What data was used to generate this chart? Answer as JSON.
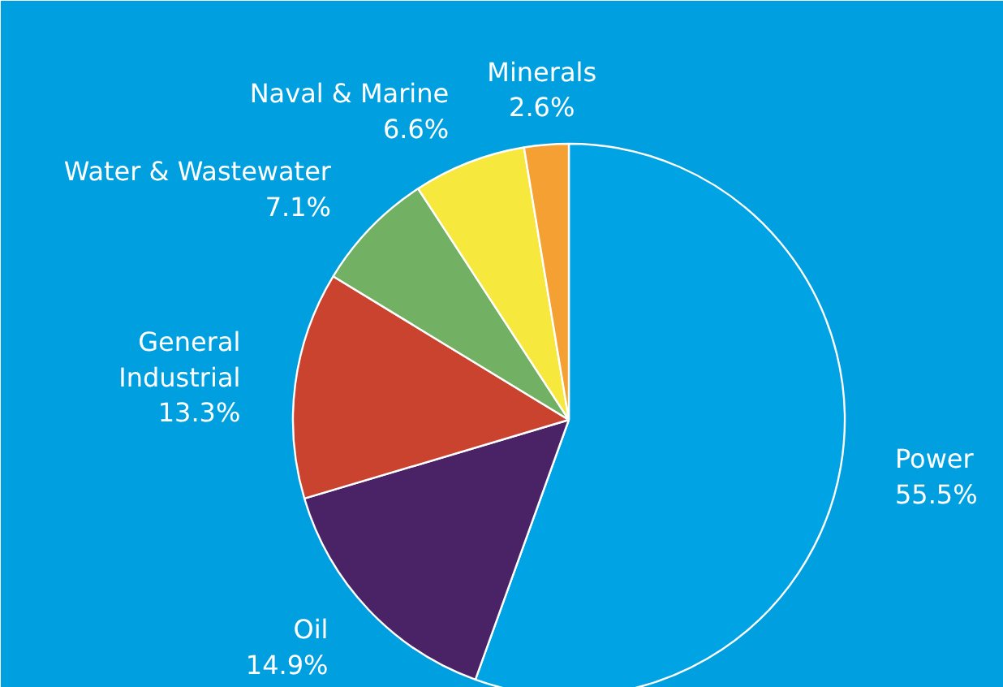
{
  "chart_data": {
    "type": "pie",
    "categories": [
      "Power",
      "Oil",
      "General Industrial",
      "Water & Wastewater",
      "Naval & Marine",
      "Minerals"
    ],
    "values": [
      55.5,
      14.9,
      13.3,
      7.1,
      6.6,
      2.6
    ],
    "value_labels": [
      "55.5%",
      "14.9%",
      "13.3%",
      "7.1%",
      "6.6%",
      "2.6%"
    ],
    "colors": [
      "#00a3e4",
      "#4a2266",
      "#c9432f",
      "#72b064",
      "#f6e83c",
      "#f5a033"
    ]
  }
}
